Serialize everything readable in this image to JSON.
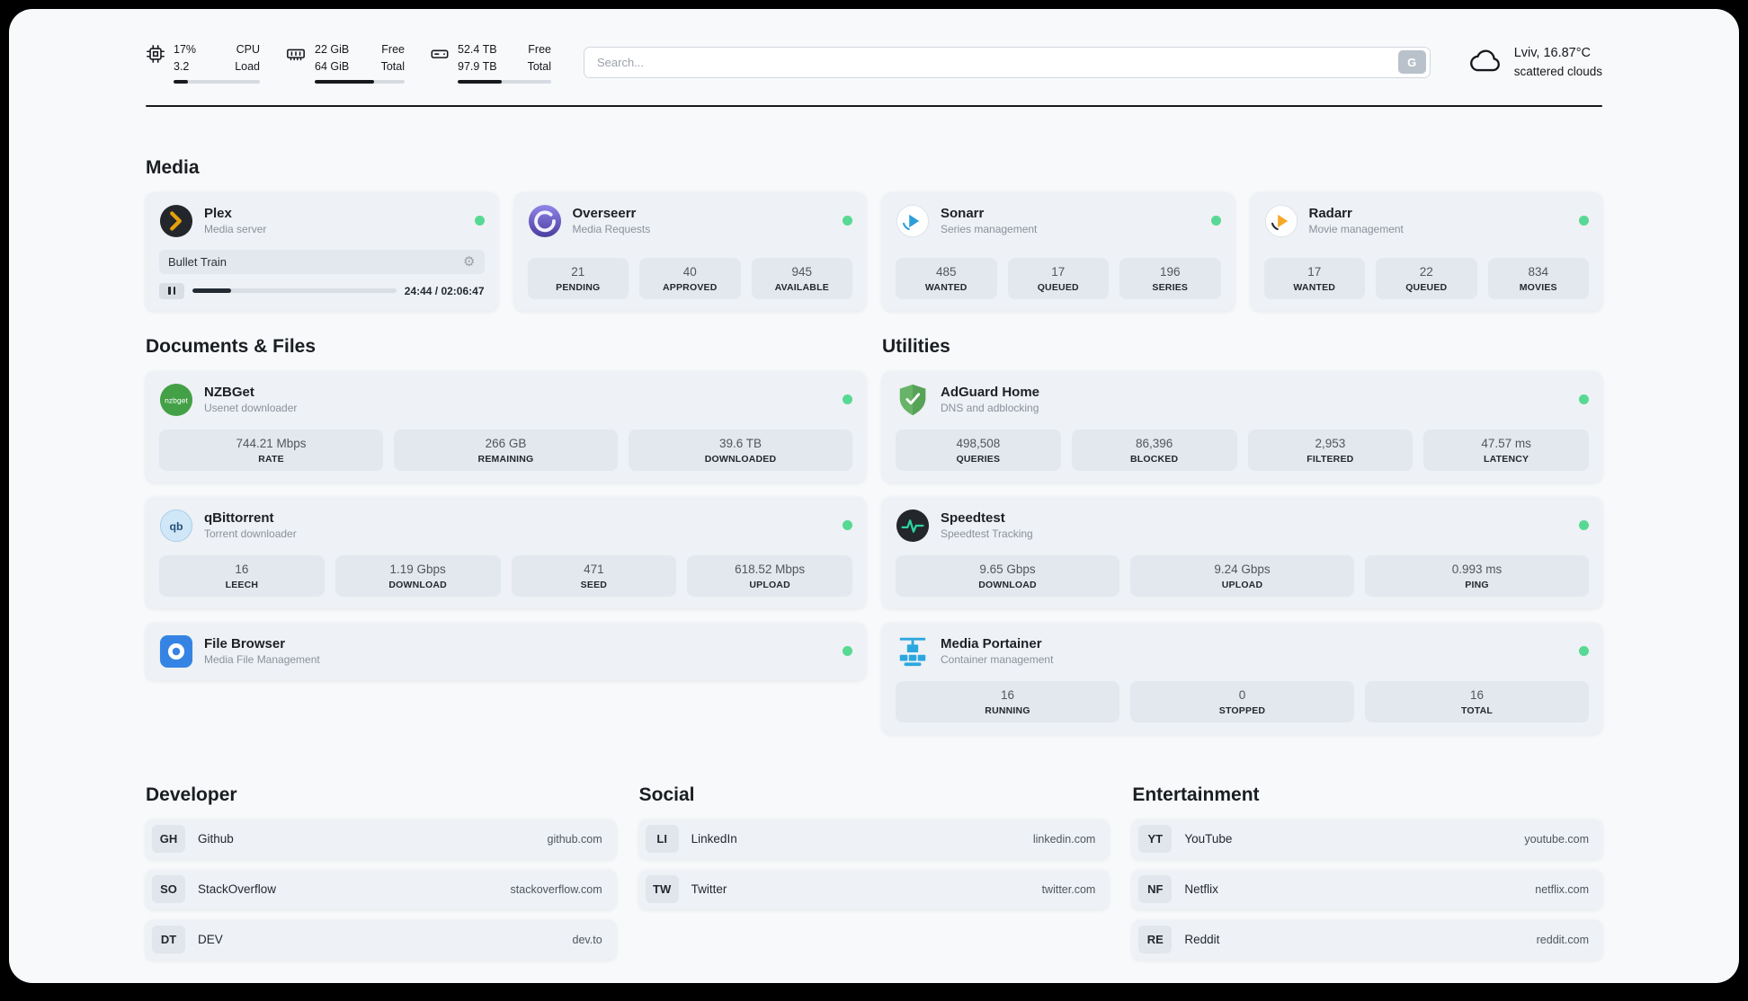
{
  "colors": {
    "status_online": "#57d993",
    "page_background": "#f7f9fb",
    "card_background": "#eef1f5",
    "stat_background": "#e3e8ee",
    "plex_accent": "#e5a00d",
    "adguard_green": "#67b367",
    "portainer_blue": "#2ba7df"
  },
  "topbar": {
    "cpu": {
      "value_top": "17%",
      "value_bottom": "3.2",
      "label_top": "CPU",
      "label_bottom": "Load",
      "progress_pct": 17
    },
    "ram": {
      "value_top": "22 GiB",
      "value_bottom": "64 GiB",
      "label_top": "Free",
      "label_bottom": "Total",
      "progress_pct": 66
    },
    "disk": {
      "value_top": "52.4 TB",
      "value_bottom": "97.9 TB",
      "label_top": "Free",
      "label_bottom": "Total",
      "progress_pct": 47
    },
    "search": {
      "placeholder": "Search...",
      "engine_label": "G"
    },
    "weather": {
      "location": "Lviv, 16.87°C",
      "condition": "scattered clouds"
    }
  },
  "media": {
    "title": "Media",
    "plex": {
      "name": "Plex",
      "description": "Media server",
      "now_playing": "Bullet Train",
      "time": "24:44 / 02:06:47",
      "progress_pct": 19
    },
    "overseerr": {
      "name": "Overseerr",
      "description": "Media Requests",
      "stats": [
        {
          "value": "21",
          "label": "PENDING"
        },
        {
          "value": "40",
          "label": "APPROVED"
        },
        {
          "value": "945",
          "label": "AVAILABLE"
        }
      ]
    },
    "sonarr": {
      "name": "Sonarr",
      "description": "Series management",
      "stats": [
        {
          "value": "485",
          "label": "WANTED"
        },
        {
          "value": "17",
          "label": "QUEUED"
        },
        {
          "value": "196",
          "label": "SERIES"
        }
      ]
    },
    "radarr": {
      "name": "Radarr",
      "description": "Movie management",
      "stats": [
        {
          "value": "17",
          "label": "WANTED"
        },
        {
          "value": "22",
          "label": "QUEUED"
        },
        {
          "value": "834",
          "label": "MOVIES"
        }
      ]
    }
  },
  "documents": {
    "title": "Documents & Files",
    "nzbget": {
      "name": "NZBGet",
      "description": "Usenet downloader",
      "icon_text": "nzbget",
      "stats": [
        {
          "value": "744.21 Mbps",
          "label": "RATE"
        },
        {
          "value": "266 GB",
          "label": "REMAINING"
        },
        {
          "value": "39.6 TB",
          "label": "DOWNLOADED"
        }
      ]
    },
    "qbittorrent": {
      "name": "qBittorrent",
      "description": "Torrent downloader",
      "icon_text": "qb",
      "stats": [
        {
          "value": "16",
          "label": "LEECH"
        },
        {
          "value": "1.19 Gbps",
          "label": "DOWNLOAD"
        },
        {
          "value": "471",
          "label": "SEED"
        },
        {
          "value": "618.52 Mbps",
          "label": "UPLOAD"
        }
      ]
    },
    "filebrowser": {
      "name": "File Browser",
      "description": "Media File Management"
    }
  },
  "utilities": {
    "title": "Utilities",
    "adguard": {
      "name": "AdGuard Home",
      "description": "DNS and adblocking",
      "stats": [
        {
          "value": "498,508",
          "label": "QUERIES"
        },
        {
          "value": "86,396",
          "label": "BLOCKED"
        },
        {
          "value": "2,953",
          "label": "FILTERED"
        },
        {
          "value": "47.57 ms",
          "label": "LATENCY"
        }
      ]
    },
    "speedtest": {
      "name": "Speedtest",
      "description": "Speedtest Tracking",
      "stats": [
        {
          "value": "9.65 Gbps",
          "label": "DOWNLOAD"
        },
        {
          "value": "9.24 Gbps",
          "label": "UPLOAD"
        },
        {
          "value": "0.993 ms",
          "label": "PING"
        }
      ]
    },
    "portainer": {
      "name": "Media Portainer",
      "description": "Container management",
      "stats": [
        {
          "value": "16",
          "label": "RUNNING"
        },
        {
          "value": "0",
          "label": "STOPPED"
        },
        {
          "value": "16",
          "label": "TOTAL"
        }
      ]
    }
  },
  "bookmarks": [
    {
      "title": "Developer",
      "links": [
        {
          "abbr": "GH",
          "name": "Github",
          "url": "github.com"
        },
        {
          "abbr": "SO",
          "name": "StackOverflow",
          "url": "stackoverflow.com"
        },
        {
          "abbr": "DT",
          "name": "DEV",
          "url": "dev.to"
        }
      ]
    },
    {
      "title": "Social",
      "links": [
        {
          "abbr": "LI",
          "name": "LinkedIn",
          "url": "linkedin.com"
        },
        {
          "abbr": "TW",
          "name": "Twitter",
          "url": "twitter.com"
        }
      ]
    },
    {
      "title": "Entertainment",
      "links": [
        {
          "abbr": "YT",
          "name": "YouTube",
          "url": "youtube.com"
        },
        {
          "abbr": "NF",
          "name": "Netflix",
          "url": "netflix.com"
        },
        {
          "abbr": "RE",
          "name": "Reddit",
          "url": "reddit.com"
        }
      ]
    }
  ]
}
